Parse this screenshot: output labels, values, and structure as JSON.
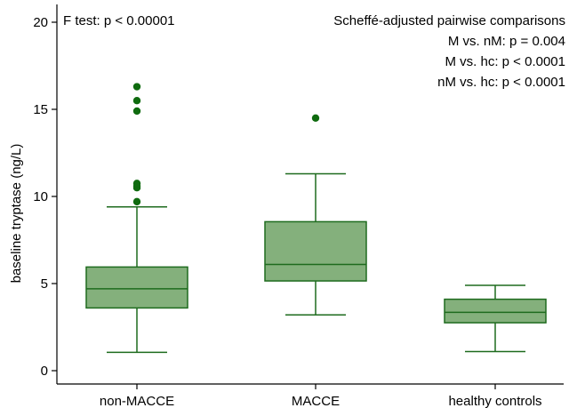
{
  "chart_data": {
    "type": "box",
    "title": "",
    "xlabel": "",
    "ylabel": "baseline tryptase (ng/L)",
    "ylim": [
      0,
      20
    ],
    "yticks": [
      0,
      5,
      10,
      15,
      20
    ],
    "grid": false,
    "categories": [
      "non-MACCE",
      "MACCE",
      "healthy controls"
    ],
    "boxes": [
      {
        "category": "non-MACCE",
        "whisker_low": 1.05,
        "q1": 3.6,
        "median": 4.7,
        "q3": 5.95,
        "whisker_high": 9.4,
        "outliers": [
          9.7,
          10.5,
          10.6,
          10.75,
          14.9,
          15.5,
          16.3
        ]
      },
      {
        "category": "MACCE",
        "whisker_low": 3.2,
        "q1": 5.15,
        "median": 6.1,
        "q3": 8.55,
        "whisker_high": 11.3,
        "outliers": [
          14.5
        ]
      },
      {
        "category": "healthy controls",
        "whisker_low": 1.1,
        "q1": 2.75,
        "median": 3.35,
        "q3": 4.1,
        "whisker_high": 4.9,
        "outliers": []
      }
    ],
    "box_fill": "#84b07c",
    "box_stroke": "#1e6b1e",
    "outlier_color": "#0f6b0f",
    "annotations": {
      "left": "F test: p < 0.00001",
      "right_title": "Scheffé-adjusted pairwise comparisons",
      "right_lines": [
        "M vs. nM: p = 0.004",
        "M vs. hc: p < 0.0001",
        "nM vs. hc: p < 0.0001"
      ]
    }
  }
}
